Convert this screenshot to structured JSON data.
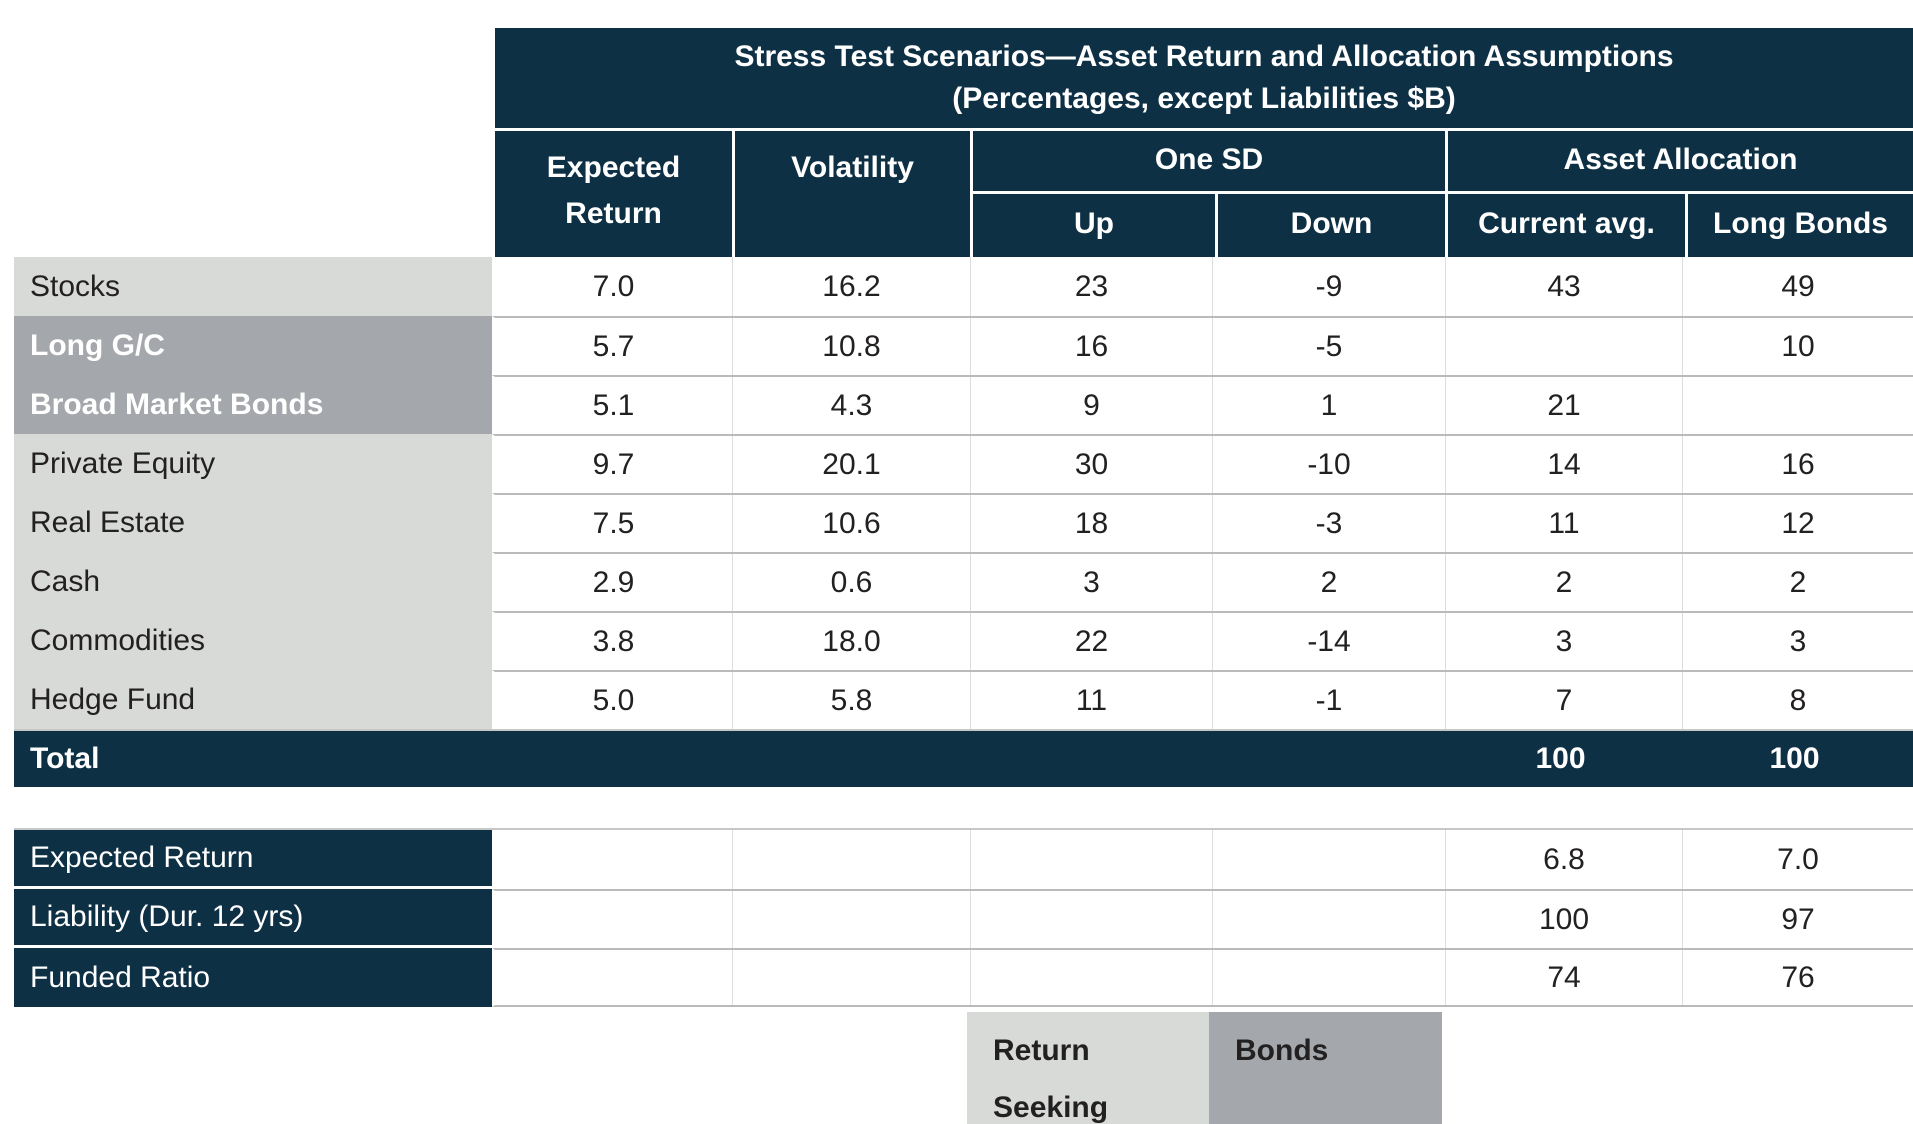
{
  "chart_data": {
    "type": "table",
    "title": "Stress Test Scenarios—Asset Return and Allocation Assumptions",
    "subtitle": "(Percentages, except Liabilities $B)",
    "column_groups": [
      {
        "label": "One SD",
        "columns": [
          "Up",
          "Down"
        ]
      },
      {
        "label": "Asset Allocation",
        "columns": [
          "Current avg.",
          "Long Bonds"
        ]
      }
    ],
    "columns": [
      "Expected Return",
      "Volatility",
      "Up",
      "Down",
      "Current avg.",
      "Long Bonds"
    ],
    "rows": [
      {
        "label": "Stocks",
        "category": "return_seeking",
        "values": [
          "7.0",
          "16.2",
          "23",
          "-9",
          "43",
          "49"
        ]
      },
      {
        "label": "Long G/C",
        "category": "bonds",
        "values": [
          "5.7",
          "10.8",
          "16",
          "-5",
          "",
          "10"
        ]
      },
      {
        "label": "Broad Market Bonds",
        "category": "bonds",
        "values": [
          "5.1",
          "4.3",
          "9",
          "1",
          "21",
          ""
        ]
      },
      {
        "label": "Private Equity",
        "category": "return_seeking",
        "values": [
          "9.7",
          "20.1",
          "30",
          "-10",
          "14",
          "16"
        ]
      },
      {
        "label": "Real Estate",
        "category": "return_seeking",
        "values": [
          "7.5",
          "10.6",
          "18",
          "-3",
          "11",
          "12"
        ]
      },
      {
        "label": "Cash",
        "category": "return_seeking",
        "values": [
          "2.9",
          "0.6",
          "3",
          "2",
          "2",
          "2"
        ]
      },
      {
        "label": "Commodities",
        "category": "return_seeking",
        "values": [
          "3.8",
          "18.0",
          "22",
          "-14",
          "3",
          "3"
        ]
      },
      {
        "label": "Hedge Fund",
        "category": "return_seeking",
        "values": [
          "5.0",
          "5.8",
          "11",
          "-1",
          "7",
          "8"
        ]
      }
    ],
    "total_row": {
      "label": "Total",
      "values": [
        "",
        "",
        "",
        "",
        "100",
        "100"
      ]
    },
    "summary_rows": [
      {
        "label": "Expected Return",
        "values": [
          "",
          "",
          "",
          "",
          "6.8",
          "7.0"
        ]
      },
      {
        "label": "Liability (Dur. 12 yrs)",
        "values": [
          "",
          "",
          "",
          "",
          "100",
          "97"
        ]
      },
      {
        "label": "Funded Ratio",
        "values": [
          "",
          "",
          "",
          "",
          "74",
          "76"
        ]
      }
    ],
    "legend": [
      {
        "label": "Return Seeking",
        "color": "#d8dad7"
      },
      {
        "label": "Bonds",
        "color": "#a4a7ab"
      }
    ],
    "colors": {
      "header_navy": "#0e3045",
      "return_seeking_gray": "#d8dad7",
      "bonds_gray": "#a4a7ab",
      "grid_line": "#b9bbb8",
      "text_dark": "#232021",
      "text_light": "#ffffff"
    }
  }
}
